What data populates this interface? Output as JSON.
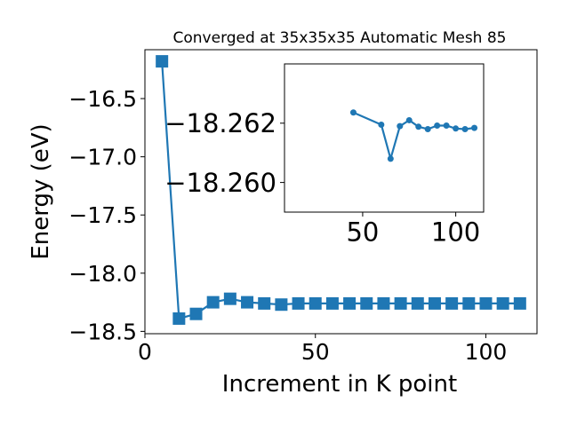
{
  "chart_data": [
    {
      "type": "line",
      "title": "Converged at 35x35x35 Automatic Mesh 85",
      "xlabel": "Increment in K point",
      "ylabel": "Energy (eV)",
      "xlim": [
        0,
        115
      ],
      "ylim": [
        -18.52,
        -16.08
      ],
      "xticks": [
        "0",
        "50",
        "100"
      ],
      "yticks": [
        "−16.5",
        "−17.0",
        "−17.5",
        "−18.0",
        "−18.5"
      ],
      "marker": "square",
      "color": "#1f77b4",
      "x": [
        5,
        10,
        15,
        20,
        25,
        30,
        35,
        40,
        45,
        50,
        55,
        60,
        65,
        70,
        75,
        80,
        85,
        90,
        95,
        100,
        105,
        110
      ],
      "y": [
        -16.18,
        -18.39,
        -18.35,
        -18.25,
        -18.22,
        -18.25,
        -18.26,
        -18.27,
        -18.26,
        -18.26,
        -18.26,
        -18.26,
        -18.26,
        -18.26,
        -18.26,
        -18.26,
        -18.26,
        -18.26,
        -18.26,
        -18.26,
        -18.26,
        -18.26
      ]
    },
    {
      "type": "line",
      "title": "",
      "xlim": [
        8,
        115
      ],
      "ylim": [
        -18.259,
        -18.264
      ],
      "xticks": [
        "50",
        "100"
      ],
      "yticks": [
        "−18.262",
        "−18.260"
      ],
      "marker": "circle",
      "color": "#1f77b4",
      "x": [
        45,
        60,
        65,
        70,
        75,
        80,
        85,
        90,
        95,
        100,
        105,
        110
      ],
      "y": [
        -18.26236,
        -18.26195,
        -18.2608,
        -18.2619,
        -18.2621,
        -18.26188,
        -18.2618,
        -18.26192,
        -18.26192,
        -18.26182,
        -18.2618,
        -18.26184
      ]
    }
  ]
}
